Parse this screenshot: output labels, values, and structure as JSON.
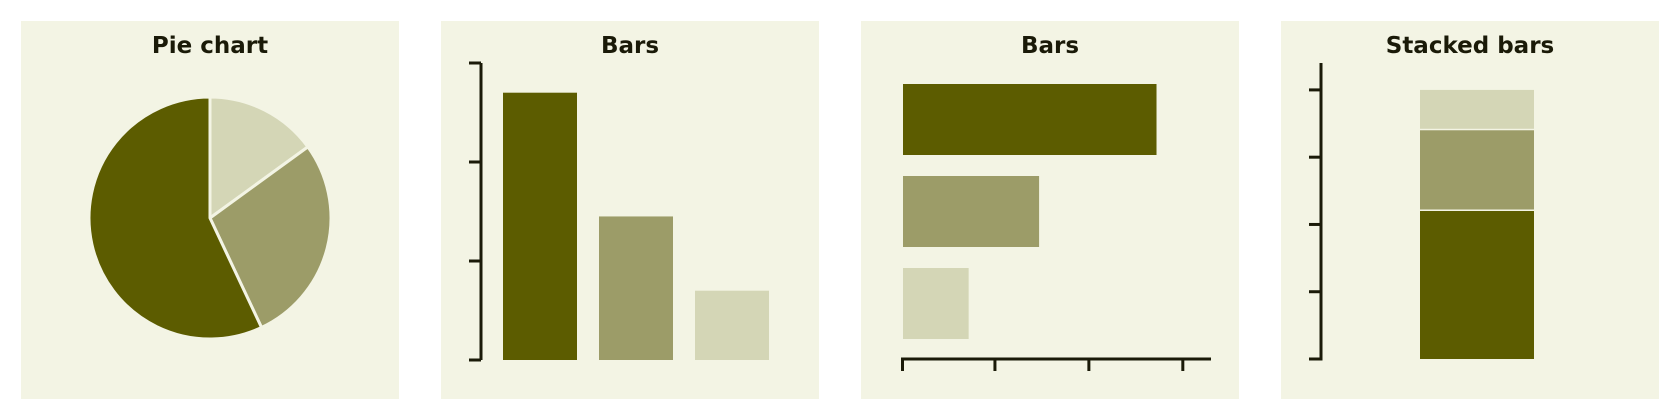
{
  "colors": {
    "dark": "#5c5c00",
    "mid": "#9c9c68",
    "light": "#d4d6b6",
    "panel": "#f3f4e4",
    "axis": "#1a1a08"
  },
  "chart_data": [
    {
      "type": "pie",
      "title": "Pie chart",
      "values": [
        15,
        28,
        57
      ],
      "colors": [
        "#d4d6b6",
        "#9c9c68",
        "#5c5c00"
      ]
    },
    {
      "type": "bar",
      "title": "Bars",
      "orientation": "vertical",
      "values": [
        27,
        14.5,
        7
      ],
      "ylim": [
        0,
        30
      ],
      "yticks": [
        0,
        10,
        20,
        30
      ],
      "colors": [
        "#5c5c00",
        "#9c9c68",
        "#d4d6b6"
      ]
    },
    {
      "type": "bar",
      "title": "Bars",
      "orientation": "horizontal",
      "values": [
        27.2,
        14.7,
        7.2
      ],
      "xlim": [
        0,
        33
      ],
      "xticks": [
        0,
        10,
        20,
        30
      ],
      "colors": [
        "#5c5c00",
        "#9c9c68",
        "#d4d6b6"
      ]
    },
    {
      "type": "bar",
      "title": "Stacked bars",
      "orientation": "vertical",
      "stacked": true,
      "values": [
        55,
        30,
        15
      ],
      "ylim": [
        0,
        110
      ],
      "yticks": [
        0,
        25,
        50,
        75,
        100
      ],
      "colors": [
        "#5c5c00",
        "#9c9c68",
        "#d4d6b6"
      ]
    }
  ]
}
